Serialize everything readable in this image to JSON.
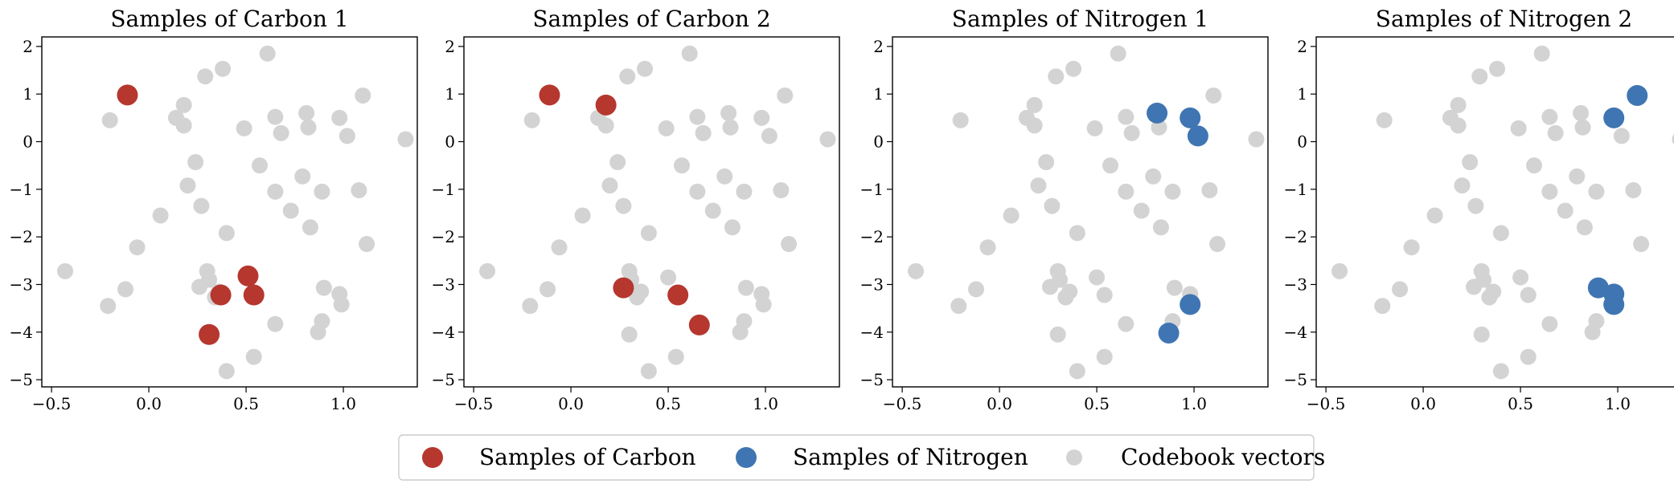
{
  "colors": {
    "carbon": "#b5372e",
    "nitrogen": "#3f75b2",
    "codebook": "#d3d3d3",
    "axis": "#000000",
    "legend_border": "#cccccc"
  },
  "codebook": [
    [
      -0.43,
      -2.72
    ],
    [
      -0.2,
      0.45
    ],
    [
      -0.12,
      -3.1
    ],
    [
      -0.21,
      -3.45
    ],
    [
      -0.06,
      -2.22
    ],
    [
      0.06,
      -1.55
    ],
    [
      0.14,
      0.5
    ],
    [
      0.18,
      0.77
    ],
    [
      0.18,
      0.34
    ],
    [
      0.2,
      -0.92
    ],
    [
      0.24,
      -0.43
    ],
    [
      0.27,
      -1.35
    ],
    [
      0.26,
      -3.05
    ],
    [
      0.29,
      1.37
    ],
    [
      0.3,
      -2.72
    ],
    [
      0.31,
      -2.9
    ],
    [
      0.3,
      -4.05
    ],
    [
      0.34,
      -3.27
    ],
    [
      0.36,
      -3.15
    ],
    [
      0.38,
      1.53
    ],
    [
      0.4,
      -1.92
    ],
    [
      0.4,
      -4.82
    ],
    [
      0.49,
      0.28
    ],
    [
      0.5,
      -2.85
    ],
    [
      0.54,
      -3.22
    ],
    [
      0.54,
      -4.52
    ],
    [
      0.57,
      -0.5
    ],
    [
      0.61,
      1.85
    ],
    [
      0.65,
      0.52
    ],
    [
      0.65,
      -1.05
    ],
    [
      0.65,
      -3.83
    ],
    [
      0.68,
      0.18
    ],
    [
      0.73,
      -1.45
    ],
    [
      0.79,
      -0.73
    ],
    [
      0.81,
      0.6
    ],
    [
      0.82,
      0.3
    ],
    [
      0.83,
      -1.8
    ],
    [
      0.87,
      -4.0
    ],
    [
      0.89,
      -1.05
    ],
    [
      0.89,
      -3.77
    ],
    [
      0.9,
      -3.07
    ],
    [
      0.98,
      0.5
    ],
    [
      0.98,
      -3.2
    ],
    [
      0.99,
      -3.42
    ],
    [
      1.02,
      0.12
    ],
    [
      1.08,
      -1.02
    ],
    [
      1.1,
      0.97
    ],
    [
      1.12,
      -2.15
    ],
    [
      1.32,
      0.05
    ]
  ],
  "chart_data": [
    {
      "type": "scatter",
      "title": "Samples of Carbon 1",
      "xlim": [
        -0.55,
        1.38
      ],
      "ylim": [
        -5.15,
        2.2
      ],
      "x_ticks": [
        -0.5,
        0.0,
        0.5,
        1.0
      ],
      "x_tick_labels": [
        "−0.5",
        "0.0",
        "0.5",
        "1.0"
      ],
      "y_ticks": [
        2,
        1,
        0,
        -1,
        -2,
        -3,
        -4,
        -5
      ],
      "y_tick_labels": [
        "2",
        "1",
        "0",
        "−1",
        "−2",
        "−3",
        "−4",
        "−5"
      ],
      "series": [
        {
          "name": "Samples of Carbon",
          "color_key": "carbon",
          "points": [
            [
              -0.11,
              0.98
            ],
            [
              0.37,
              -3.22
            ],
            [
              0.51,
              -2.82
            ],
            [
              0.54,
              -3.22
            ],
            [
              0.31,
              -4.05
            ]
          ]
        }
      ]
    },
    {
      "type": "scatter",
      "title": "Samples of Carbon 2",
      "xlim": [
        -0.55,
        1.38
      ],
      "ylim": [
        -5.15,
        2.2
      ],
      "x_ticks": [
        -0.5,
        0.0,
        0.5,
        1.0
      ],
      "x_tick_labels": [
        "−0.5",
        "0.0",
        "0.5",
        "1.0"
      ],
      "y_ticks": [
        2,
        1,
        0,
        -1,
        -2,
        -3,
        -4,
        -5
      ],
      "y_tick_labels": [
        "2",
        "1",
        "0",
        "−1",
        "−2",
        "−3",
        "−4",
        "−5"
      ],
      "series": [
        {
          "name": "Samples of Carbon",
          "color_key": "carbon",
          "points": [
            [
              -0.11,
              0.98
            ],
            [
              0.18,
              0.77
            ],
            [
              0.27,
              -3.07
            ],
            [
              0.55,
              -3.22
            ],
            [
              0.66,
              -3.85
            ]
          ]
        }
      ]
    },
    {
      "type": "scatter",
      "title": "Samples of Nitrogen 1",
      "xlim": [
        -0.55,
        1.38
      ],
      "ylim": [
        -5.15,
        2.2
      ],
      "x_ticks": [
        -0.5,
        0.0,
        0.5,
        1.0
      ],
      "x_tick_labels": [
        "−0.5",
        "0.0",
        "0.5",
        "1.0"
      ],
      "y_ticks": [
        2,
        1,
        0,
        -1,
        -2,
        -3,
        -4,
        -5
      ],
      "y_tick_labels": [
        "2",
        "1",
        "0",
        "−1",
        "−2",
        "−3",
        "−4",
        "−5"
      ],
      "series": [
        {
          "name": "Samples of Nitrogen",
          "color_key": "nitrogen",
          "points": [
            [
              0.81,
              0.6
            ],
            [
              0.98,
              0.5
            ],
            [
              1.02,
              0.12
            ],
            [
              0.98,
              -3.42
            ],
            [
              0.87,
              -4.02
            ]
          ]
        }
      ]
    },
    {
      "type": "scatter",
      "title": "Samples of Nitrogen 2",
      "xlim": [
        -0.55,
        1.38
      ],
      "ylim": [
        -5.15,
        2.2
      ],
      "x_ticks": [
        -0.5,
        0.0,
        0.5,
        1.0
      ],
      "x_tick_labels": [
        "−0.5",
        "0.0",
        "0.5",
        "1.0"
      ],
      "y_ticks": [
        2,
        1,
        0,
        -1,
        -2,
        -3,
        -4,
        -5
      ],
      "y_tick_labels": [
        "2",
        "1",
        "0",
        "−1",
        "−2",
        "−3",
        "−4",
        "−5"
      ],
      "series": [
        {
          "name": "Samples of Nitrogen",
          "color_key": "nitrogen",
          "points": [
            [
              1.1,
              0.97
            ],
            [
              0.98,
              0.5
            ],
            [
              0.9,
              -3.07
            ],
            [
              0.98,
              -3.2
            ],
            [
              0.98,
              -3.42
            ]
          ]
        }
      ]
    }
  ],
  "legend": {
    "position": "bottom-center",
    "entries": [
      {
        "label": "Samples of Carbon",
        "color_key": "carbon"
      },
      {
        "label": "Samples of Nitrogen",
        "color_key": "nitrogen"
      },
      {
        "label": "Codebook vectors",
        "color_key": "codebook"
      }
    ]
  }
}
